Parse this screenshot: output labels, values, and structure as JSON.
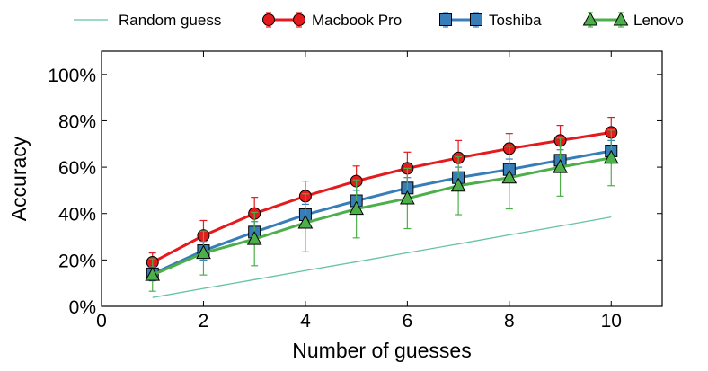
{
  "chart_data": {
    "type": "line",
    "title": "",
    "xlabel": "Number of guesses",
    "ylabel": "Accuracy",
    "xlim": [
      0,
      11
    ],
    "ylim": [
      0,
      110
    ],
    "x_ticks": [
      0,
      2,
      4,
      6,
      8,
      10
    ],
    "y_ticks": [
      0,
      20,
      40,
      60,
      80,
      100
    ],
    "y_tick_labels": [
      "0%",
      "20%",
      "40%",
      "60%",
      "80%",
      "100%"
    ],
    "grid": false,
    "legend_position": "top, outside plot",
    "x": [
      1,
      2,
      3,
      4,
      5,
      6,
      7,
      8,
      9,
      10
    ],
    "series": [
      {
        "name": "Random guess",
        "color": "#66c2a5",
        "marker": "none",
        "values": [
          3.8,
          7.7,
          11.5,
          15.4,
          19.2,
          23.1,
          26.9,
          30.8,
          34.6,
          38.5
        ],
        "errors": []
      },
      {
        "name": "Macbook Pro",
        "color": "#e41a1c",
        "marker": "circle",
        "values": [
          19,
          30.5,
          40,
          47.5,
          54,
          59.5,
          64,
          68,
          71.5,
          75
        ],
        "errors": [
          4,
          6.5,
          7,
          6.5,
          6.5,
          7,
          7.5,
          6.5,
          6.5,
          6.5
        ]
      },
      {
        "name": "Toshiba",
        "color": "#377eb8",
        "marker": "square",
        "values": [
          14,
          24,
          32,
          39.5,
          45.5,
          51,
          55.5,
          59,
          63,
          67
        ],
        "errors": [
          3,
          4,
          4.5,
          4.5,
          4.5,
          4.5,
          4.5,
          4.5,
          4.5,
          4.5
        ]
      },
      {
        "name": "Lenovo",
        "color": "#4daf4a",
        "marker": "triangle",
        "values": [
          13.5,
          23,
          29,
          36,
          42,
          46.5,
          52,
          55.5,
          60,
          64
        ],
        "errors": [
          7,
          9.5,
          11.5,
          12.5,
          12.5,
          13,
          12.5,
          13.5,
          12.5,
          12
        ]
      }
    ]
  }
}
